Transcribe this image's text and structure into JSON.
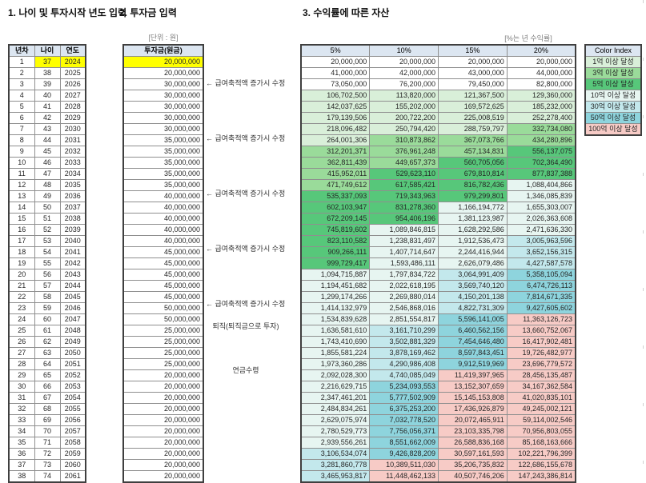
{
  "sections": {
    "section1_title": "1. 나이 및 투자시작 년도 입력",
    "section2_title": "2. 투자금 입력",
    "section3_title": "3. 수익률에 따른 자산",
    "unit_label": "[단위 : 원]",
    "rate_note": "[%는 년 수익률]"
  },
  "age_table": {
    "headers": [
      "년차",
      "나이",
      "연도"
    ],
    "rows": [
      [
        1,
        37,
        2024
      ],
      [
        2,
        38,
        2025
      ],
      [
        3,
        39,
        2026
      ],
      [
        4,
        40,
        2027
      ],
      [
        5,
        41,
        2028
      ],
      [
        6,
        42,
        2029
      ],
      [
        7,
        43,
        2030
      ],
      [
        8,
        44,
        2031
      ],
      [
        9,
        45,
        2032
      ],
      [
        10,
        46,
        2033
      ],
      [
        11,
        47,
        2034
      ],
      [
        12,
        48,
        2035
      ],
      [
        13,
        49,
        2036
      ],
      [
        14,
        50,
        2037
      ],
      [
        15,
        51,
        2038
      ],
      [
        16,
        52,
        2039
      ],
      [
        17,
        53,
        2040
      ],
      [
        18,
        54,
        2041
      ],
      [
        19,
        55,
        2042
      ],
      [
        20,
        56,
        2043
      ],
      [
        21,
        57,
        2044
      ],
      [
        22,
        58,
        2045
      ],
      [
        23,
        59,
        2046
      ],
      [
        24,
        60,
        2047
      ],
      [
        25,
        61,
        2048
      ],
      [
        26,
        62,
        2049
      ],
      [
        27,
        63,
        2050
      ],
      [
        28,
        64,
        2051
      ],
      [
        29,
        65,
        2052
      ],
      [
        30,
        66,
        2053
      ],
      [
        31,
        67,
        2054
      ],
      [
        32,
        68,
        2055
      ],
      [
        33,
        69,
        2056
      ],
      [
        34,
        70,
        2057
      ],
      [
        35,
        71,
        2058
      ],
      [
        36,
        72,
        2059
      ],
      [
        37,
        73,
        2060
      ],
      [
        38,
        74,
        2061
      ]
    ]
  },
  "investment_table": {
    "header": "투자금(원금)",
    "values": [
      "20,000,000",
      "20,000,000",
      "30,000,000",
      "30,000,000",
      "30,000,000",
      "30,000,000",
      "30,000,000",
      "35,000,000",
      "35,000,000",
      "35,000,000",
      "35,000,000",
      "35,000,000",
      "40,000,000",
      "40,000,000",
      "40,000,000",
      "40,000,000",
      "40,000,000",
      "45,000,000",
      "45,000,000",
      "45,000,000",
      "45,000,000",
      "45,000,000",
      "50,000,000",
      "50,000,000",
      "25,000,000",
      "25,000,000",
      "25,000,000",
      "25,000,000",
      "20,000,000",
      "20,000,000",
      "20,000,000",
      "20,000,000",
      "20,000,000",
      "20,000,000",
      "20,000,000",
      "20,000,000",
      "20,000,000",
      "20,000,000"
    ]
  },
  "annotations": [
    {
      "row": 3,
      "text": "← 급여축적액 증가시 수정",
      "align": "left"
    },
    {
      "row": 8,
      "text": "← 급여축적액 증가시 수정",
      "align": "left"
    },
    {
      "row": 13,
      "text": "← 급여축적액 증가시 수정",
      "align": "left"
    },
    {
      "row": 18,
      "text": "← 급여축적액 증가시 수정",
      "align": "left"
    },
    {
      "row": 23,
      "text": "← 급여축적액 증가시 수정",
      "align": "left"
    },
    {
      "row": 25,
      "text": "퇴직(퇴직금으로 투자)",
      "align": "center"
    },
    {
      "row": 29,
      "text": "연금수령",
      "align": "center"
    }
  ],
  "asset_table": {
    "headers": [
      "5%",
      "10%",
      "15%",
      "20%"
    ],
    "rows": [
      [
        "20,000,000",
        "20,000,000",
        "20,000,000",
        "20,000,000"
      ],
      [
        "41,000,000",
        "42,000,000",
        "43,000,000",
        "44,000,000"
      ],
      [
        "73,050,000",
        "76,200,000",
        "79,450,000",
        "82,800,000"
      ],
      [
        "106,702,500",
        "113,820,000",
        "121,367,500",
        "129,360,000"
      ],
      [
        "142,037,625",
        "155,202,000",
        "169,572,625",
        "185,232,000"
      ],
      [
        "179,139,506",
        "200,722,200",
        "225,008,519",
        "252,278,400"
      ],
      [
        "218,096,482",
        "250,794,420",
        "288,759,797",
        "332,734,080"
      ],
      [
        "264,001,306",
        "310,873,862",
        "367,073,766",
        "434,280,896"
      ],
      [
        "312,201,371",
        "376,961,248",
        "457,134,831",
        "556,137,075"
      ],
      [
        "362,811,439",
        "449,657,373",
        "560,705,056",
        "702,364,490"
      ],
      [
        "415,952,011",
        "529,623,110",
        "679,810,814",
        "877,837,388"
      ],
      [
        "471,749,612",
        "617,585,421",
        "816,782,436",
        "1,088,404,866"
      ],
      [
        "535,337,093",
        "719,343,963",
        "979,299,801",
        "1,346,085,839"
      ],
      [
        "602,103,947",
        "831,278,360",
        "1,166,194,772",
        "1,655,303,007"
      ],
      [
        "672,209,145",
        "954,406,196",
        "1,381,123,987",
        "2,026,363,608"
      ],
      [
        "745,819,602",
        "1,089,846,815",
        "1,628,292,586",
        "2,471,636,330"
      ],
      [
        "823,110,582",
        "1,238,831,497",
        "1,912,536,473",
        "3,005,963,596"
      ],
      [
        "909,266,111",
        "1,407,714,647",
        "2,244,416,944",
        "3,652,156,315"
      ],
      [
        "999,729,417",
        "1,593,486,111",
        "2,626,079,486",
        "4,427,587,578"
      ],
      [
        "1,094,715,887",
        "1,797,834,722",
        "3,064,991,409",
        "5,358,105,094"
      ],
      [
        "1,194,451,682",
        "2,022,618,195",
        "3,569,740,120",
        "6,474,726,113"
      ],
      [
        "1,299,174,266",
        "2,269,880,014",
        "4,150,201,138",
        "7,814,671,335"
      ],
      [
        "1,414,132,979",
        "2,546,868,016",
        "4,822,731,309",
        "9,427,605,602"
      ],
      [
        "1,534,839,628",
        "2,851,554,817",
        "5,596,141,005",
        "11,363,126,723"
      ],
      [
        "1,636,581,610",
        "3,161,710,299",
        "6,460,562,156",
        "13,660,752,067"
      ],
      [
        "1,743,410,690",
        "3,502,881,329",
        "7,454,646,480",
        "16,417,902,481"
      ],
      [
        "1,855,581,224",
        "3,878,169,462",
        "8,597,843,451",
        "19,726,482,977"
      ],
      [
        "1,973,360,286",
        "4,290,986,408",
        "9,912,519,969",
        "23,696,779,572"
      ],
      [
        "2,092,028,300",
        "4,740,085,049",
        "11,419,397,965",
        "28,456,135,487"
      ],
      [
        "2,216,629,715",
        "5,234,093,553",
        "13,152,307,659",
        "34,167,362,584"
      ],
      [
        "2,347,461,201",
        "5,777,502,909",
        "15,145,153,808",
        "41,020,835,101"
      ],
      [
        "2,484,834,261",
        "6,375,253,200",
        "17,436,926,879",
        "49,245,002,121"
      ],
      [
        "2,629,075,974",
        "7,032,778,520",
        "20,072,465,911",
        "59,114,002,546"
      ],
      [
        "2,780,529,773",
        "7,756,056,371",
        "23,103,335,798",
        "70,956,803,055"
      ],
      [
        "2,939,556,261",
        "8,551,662,009",
        "26,588,836,168",
        "85,168,163,666"
      ],
      [
        "3,106,534,074",
        "9,426,828,209",
        "30,597,161,593",
        "102,221,796,399"
      ],
      [
        "3,281,860,778",
        "10,389,511,030",
        "35,206,735,832",
        "122,686,155,678"
      ],
      [
        "3,465,953,817",
        "11,448,462,133",
        "40,507,746,206",
        "147,243,386,814"
      ]
    ]
  },
  "color_index": {
    "header": "Color Index",
    "items": [
      {
        "label": "1억 이상 달성",
        "color": "#d9efd9",
        "threshold": 100000000
      },
      {
        "label": "3억 이상 달성",
        "color": "#9adb9a",
        "threshold": 300000000
      },
      {
        "label": "5억 이상 달성",
        "color": "#57c77a",
        "threshold": 500000000
      },
      {
        "label": "10억 이상 달성",
        "color": "#e7f5f1",
        "threshold": 1000000000
      },
      {
        "label": "30억 이상 달성",
        "color": "#c3e8ec",
        "threshold": 3000000000
      },
      {
        "label": "50억 이상 달성",
        "color": "#8ed4dd",
        "threshold": 5000000000
      },
      {
        "label": "100억 이상 달성",
        "color": "#f7cbc6",
        "threshold": 10000000000
      }
    ]
  },
  "colors": {
    "header_fill": "#dce6f1",
    "input_fill": "#ffff00"
  }
}
